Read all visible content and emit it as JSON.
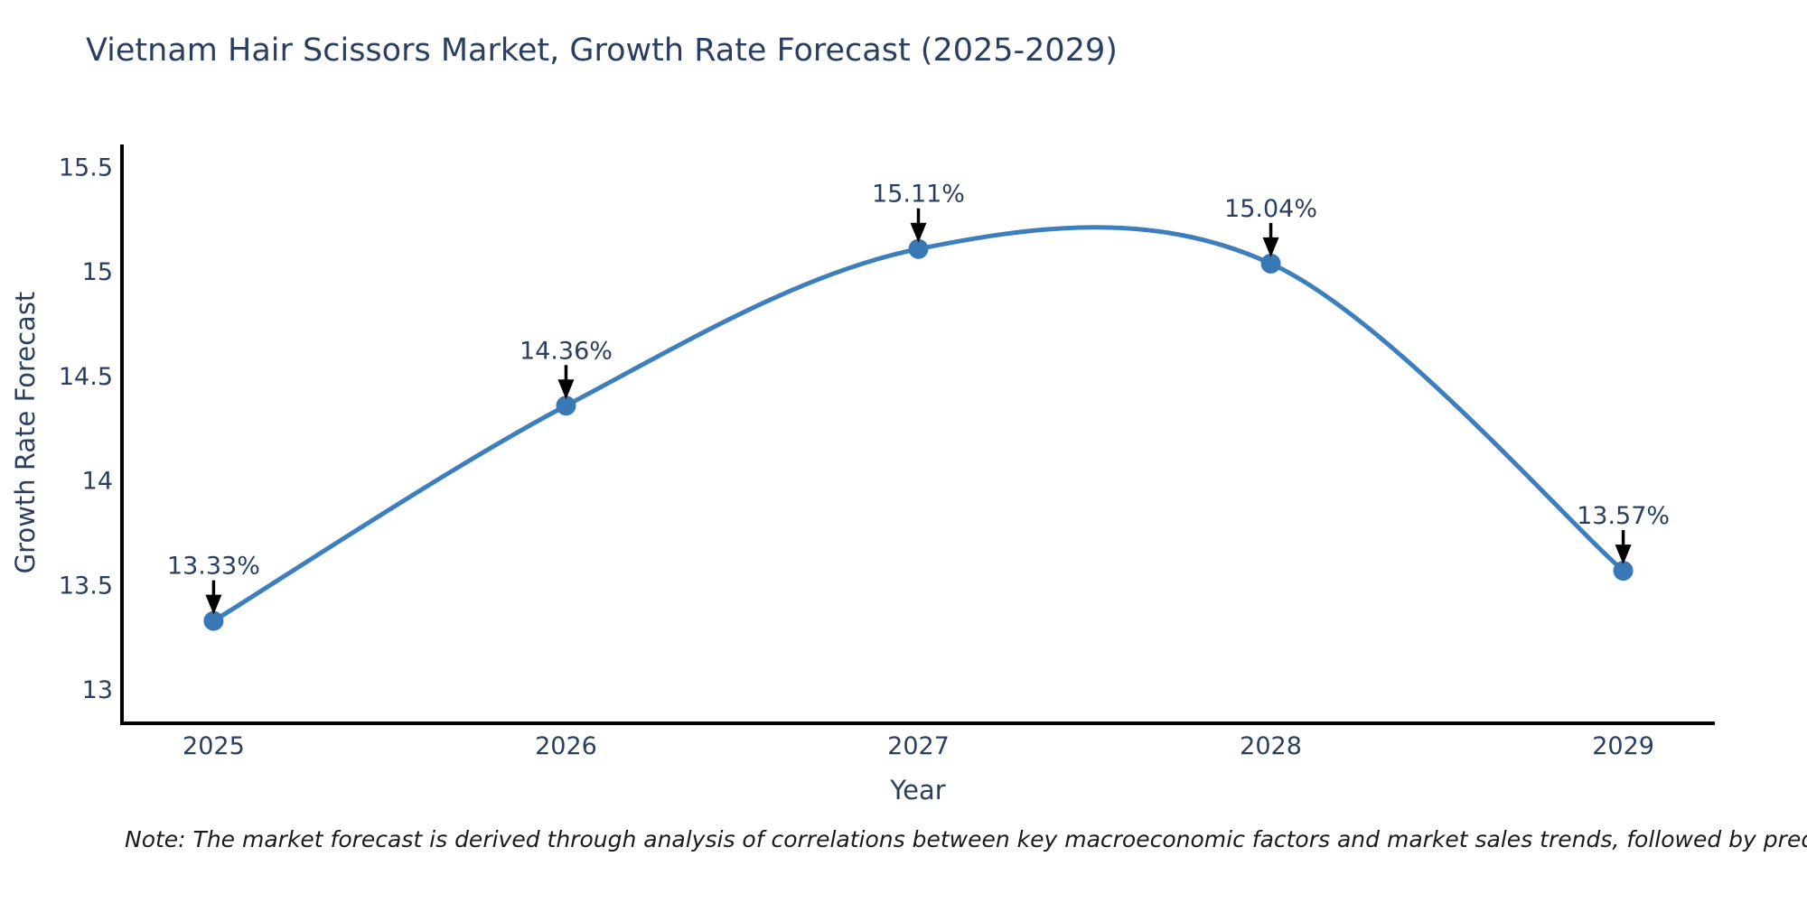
{
  "header": {
    "title": "Vietnam Hair Scissors Market, Growth Rate Forecast (2025-2029)"
  },
  "footer": {
    "note": "Note: The market forecast is derived through analysis of correlations between key macroeconomic factors and market sales trends, followed by predictive modeling to project future sal"
  },
  "colors": {
    "line": "#3d7ebd",
    "marker": "#3a78b5",
    "axis": "#000000",
    "arrow": "#000000",
    "chart_text": "#2a3f5f",
    "note_text": "#1a1a1a",
    "background": "#ffffff"
  },
  "chart_data": {
    "type": "line",
    "line_shape": "spline",
    "title": "Vietnam Hair Scissors Market, Growth Rate Forecast (2025-2029)",
    "xlabel": "Year",
    "ylabel": "Growth Rate Forecast",
    "x": [
      2025,
      2026,
      2027,
      2028,
      2029
    ],
    "x_tick_labels": [
      "2025",
      "2026",
      "2027",
      "2028",
      "2029"
    ],
    "values": [
      13.33,
      14.36,
      15.11,
      15.04,
      13.57
    ],
    "point_labels": [
      "13.33%",
      "14.36%",
      "15.11%",
      "15.04%",
      "13.57%"
    ],
    "yticks": [
      13,
      13.5,
      14,
      14.5,
      15,
      15.5
    ],
    "ytick_labels": [
      "13",
      "13.5",
      "14",
      "14.5",
      "15",
      "15.5"
    ],
    "ylim": [
      12.84,
      15.61
    ],
    "xlim": [
      2024.74,
      2029.26
    ],
    "grid": false,
    "legend": "none",
    "markers": true,
    "annotations": "each point labeled with its percentage above a black downward arrow"
  }
}
